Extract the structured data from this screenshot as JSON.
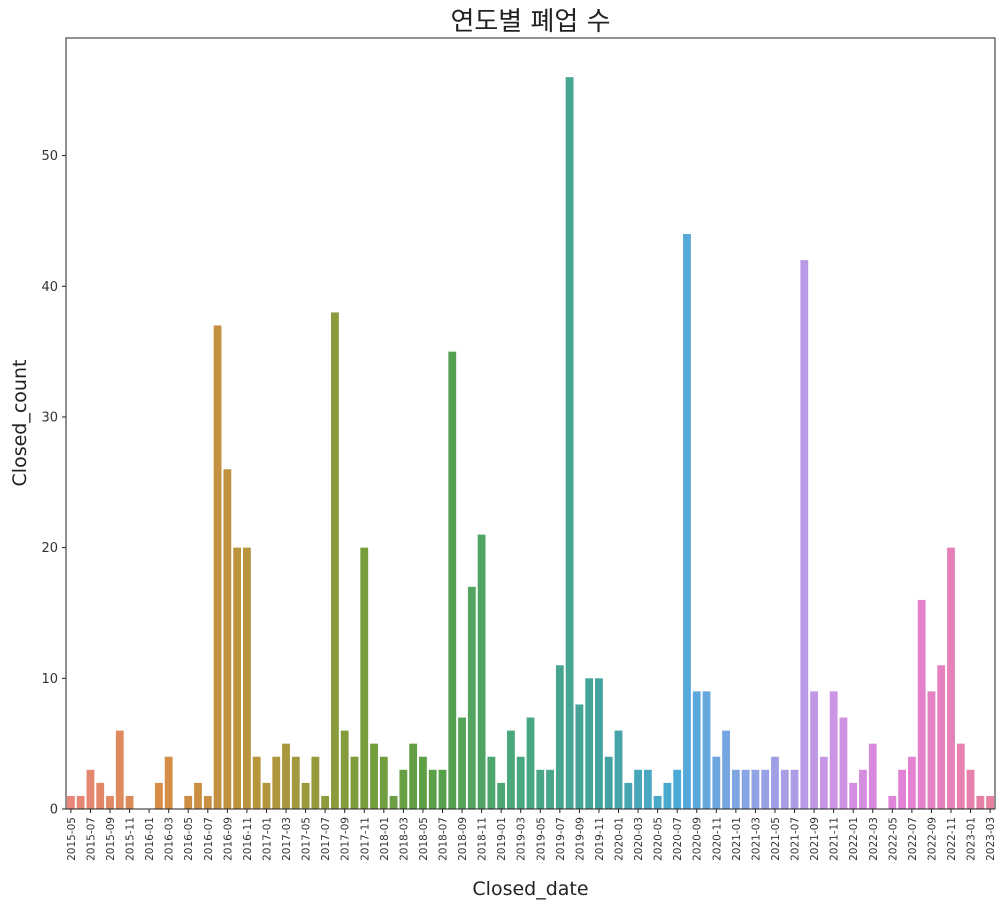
{
  "chart_data": {
    "type": "bar",
    "title": "연도별 폐업 수",
    "xlabel": "Closed_date",
    "ylabel": "Closed_count",
    "ylim": [
      0,
      59
    ],
    "yticks": [
      0,
      10,
      20,
      30,
      40,
      50
    ],
    "grid": false,
    "categories": [
      "2015-05",
      "2015-06",
      "2015-07",
      "2015-08",
      "2015-09",
      "2015-10",
      "2015-11",
      "2015-12",
      "2016-01",
      "2016-02",
      "2016-03",
      "2016-04",
      "2016-05",
      "2016-06",
      "2016-07",
      "2016-08",
      "2016-09",
      "2016-10",
      "2016-11",
      "2016-12",
      "2017-01",
      "2017-02",
      "2017-03",
      "2017-04",
      "2017-05",
      "2017-06",
      "2017-07",
      "2017-08",
      "2017-09",
      "2017-10",
      "2017-11",
      "2017-12",
      "2018-01",
      "2018-02",
      "2018-03",
      "2018-04",
      "2018-05",
      "2018-06",
      "2018-07",
      "2018-08",
      "2018-09",
      "2018-10",
      "2018-11",
      "2018-12",
      "2019-01",
      "2019-02",
      "2019-03",
      "2019-04",
      "2019-05",
      "2019-06",
      "2019-07",
      "2019-08",
      "2019-09",
      "2019-10",
      "2019-11",
      "2019-12",
      "2020-01",
      "2020-02",
      "2020-03",
      "2020-04",
      "2020-05",
      "2020-06",
      "2020-07",
      "2020-08",
      "2020-09",
      "2020-10",
      "2020-11",
      "2020-12",
      "2021-01",
      "2021-02",
      "2021-03",
      "2021-04",
      "2021-05",
      "2021-06",
      "2021-07",
      "2021-08",
      "2021-09",
      "2021-10",
      "2021-11",
      "2021-12",
      "2022-01",
      "2022-02",
      "2022-03",
      "2022-04",
      "2022-05",
      "2022-06",
      "2022-07",
      "2022-08",
      "2022-09",
      "2022-10",
      "2022-11",
      "2022-12",
      "2023-01",
      "2023-02",
      "2023-03"
    ],
    "xtick_labels": [
      "2015-05",
      "2015-07",
      "2015-09",
      "2015-11",
      "2016-01",
      "2016-03",
      "2016-05",
      "2016-07",
      "2016-09",
      "2016-11",
      "2017-01",
      "2017-03",
      "2017-05",
      "2017-07",
      "2017-09",
      "2017-11",
      "2018-01",
      "2018-03",
      "2018-05",
      "2018-07",
      "2018-09",
      "2018-11",
      "2019-01",
      "2019-03",
      "2019-05",
      "2019-07",
      "2019-09",
      "2019-11",
      "2020-01",
      "2020-03",
      "2020-05",
      "2020-07",
      "2020-09",
      "2020-11",
      "2021-01",
      "2021-03",
      "2021-05",
      "2021-07",
      "2021-09",
      "2021-11",
      "2022-01",
      "2022-03",
      "2022-05",
      "2022-07",
      "2022-09",
      "2022-11",
      "2023-01",
      "2023-03"
    ],
    "values": [
      1,
      1,
      3,
      2,
      1,
      6,
      1,
      0,
      0,
      2,
      4,
      0,
      1,
      2,
      1,
      37,
      26,
      20,
      20,
      4,
      2,
      4,
      5,
      4,
      2,
      4,
      1,
      38,
      6,
      4,
      20,
      5,
      4,
      1,
      3,
      5,
      4,
      3,
      3,
      35,
      7,
      17,
      21,
      4,
      2,
      6,
      4,
      7,
      3,
      3,
      11,
      56,
      8,
      10,
      10,
      4,
      6,
      2,
      3,
      3,
      1,
      2,
      3,
      44,
      9,
      9,
      4,
      6,
      3,
      3,
      3,
      3,
      4,
      3,
      3,
      42,
      9,
      4,
      9,
      7,
      2,
      3,
      5,
      0,
      1,
      3,
      4,
      16,
      9,
      11,
      20,
      5,
      3,
      1,
      1
    ]
  }
}
